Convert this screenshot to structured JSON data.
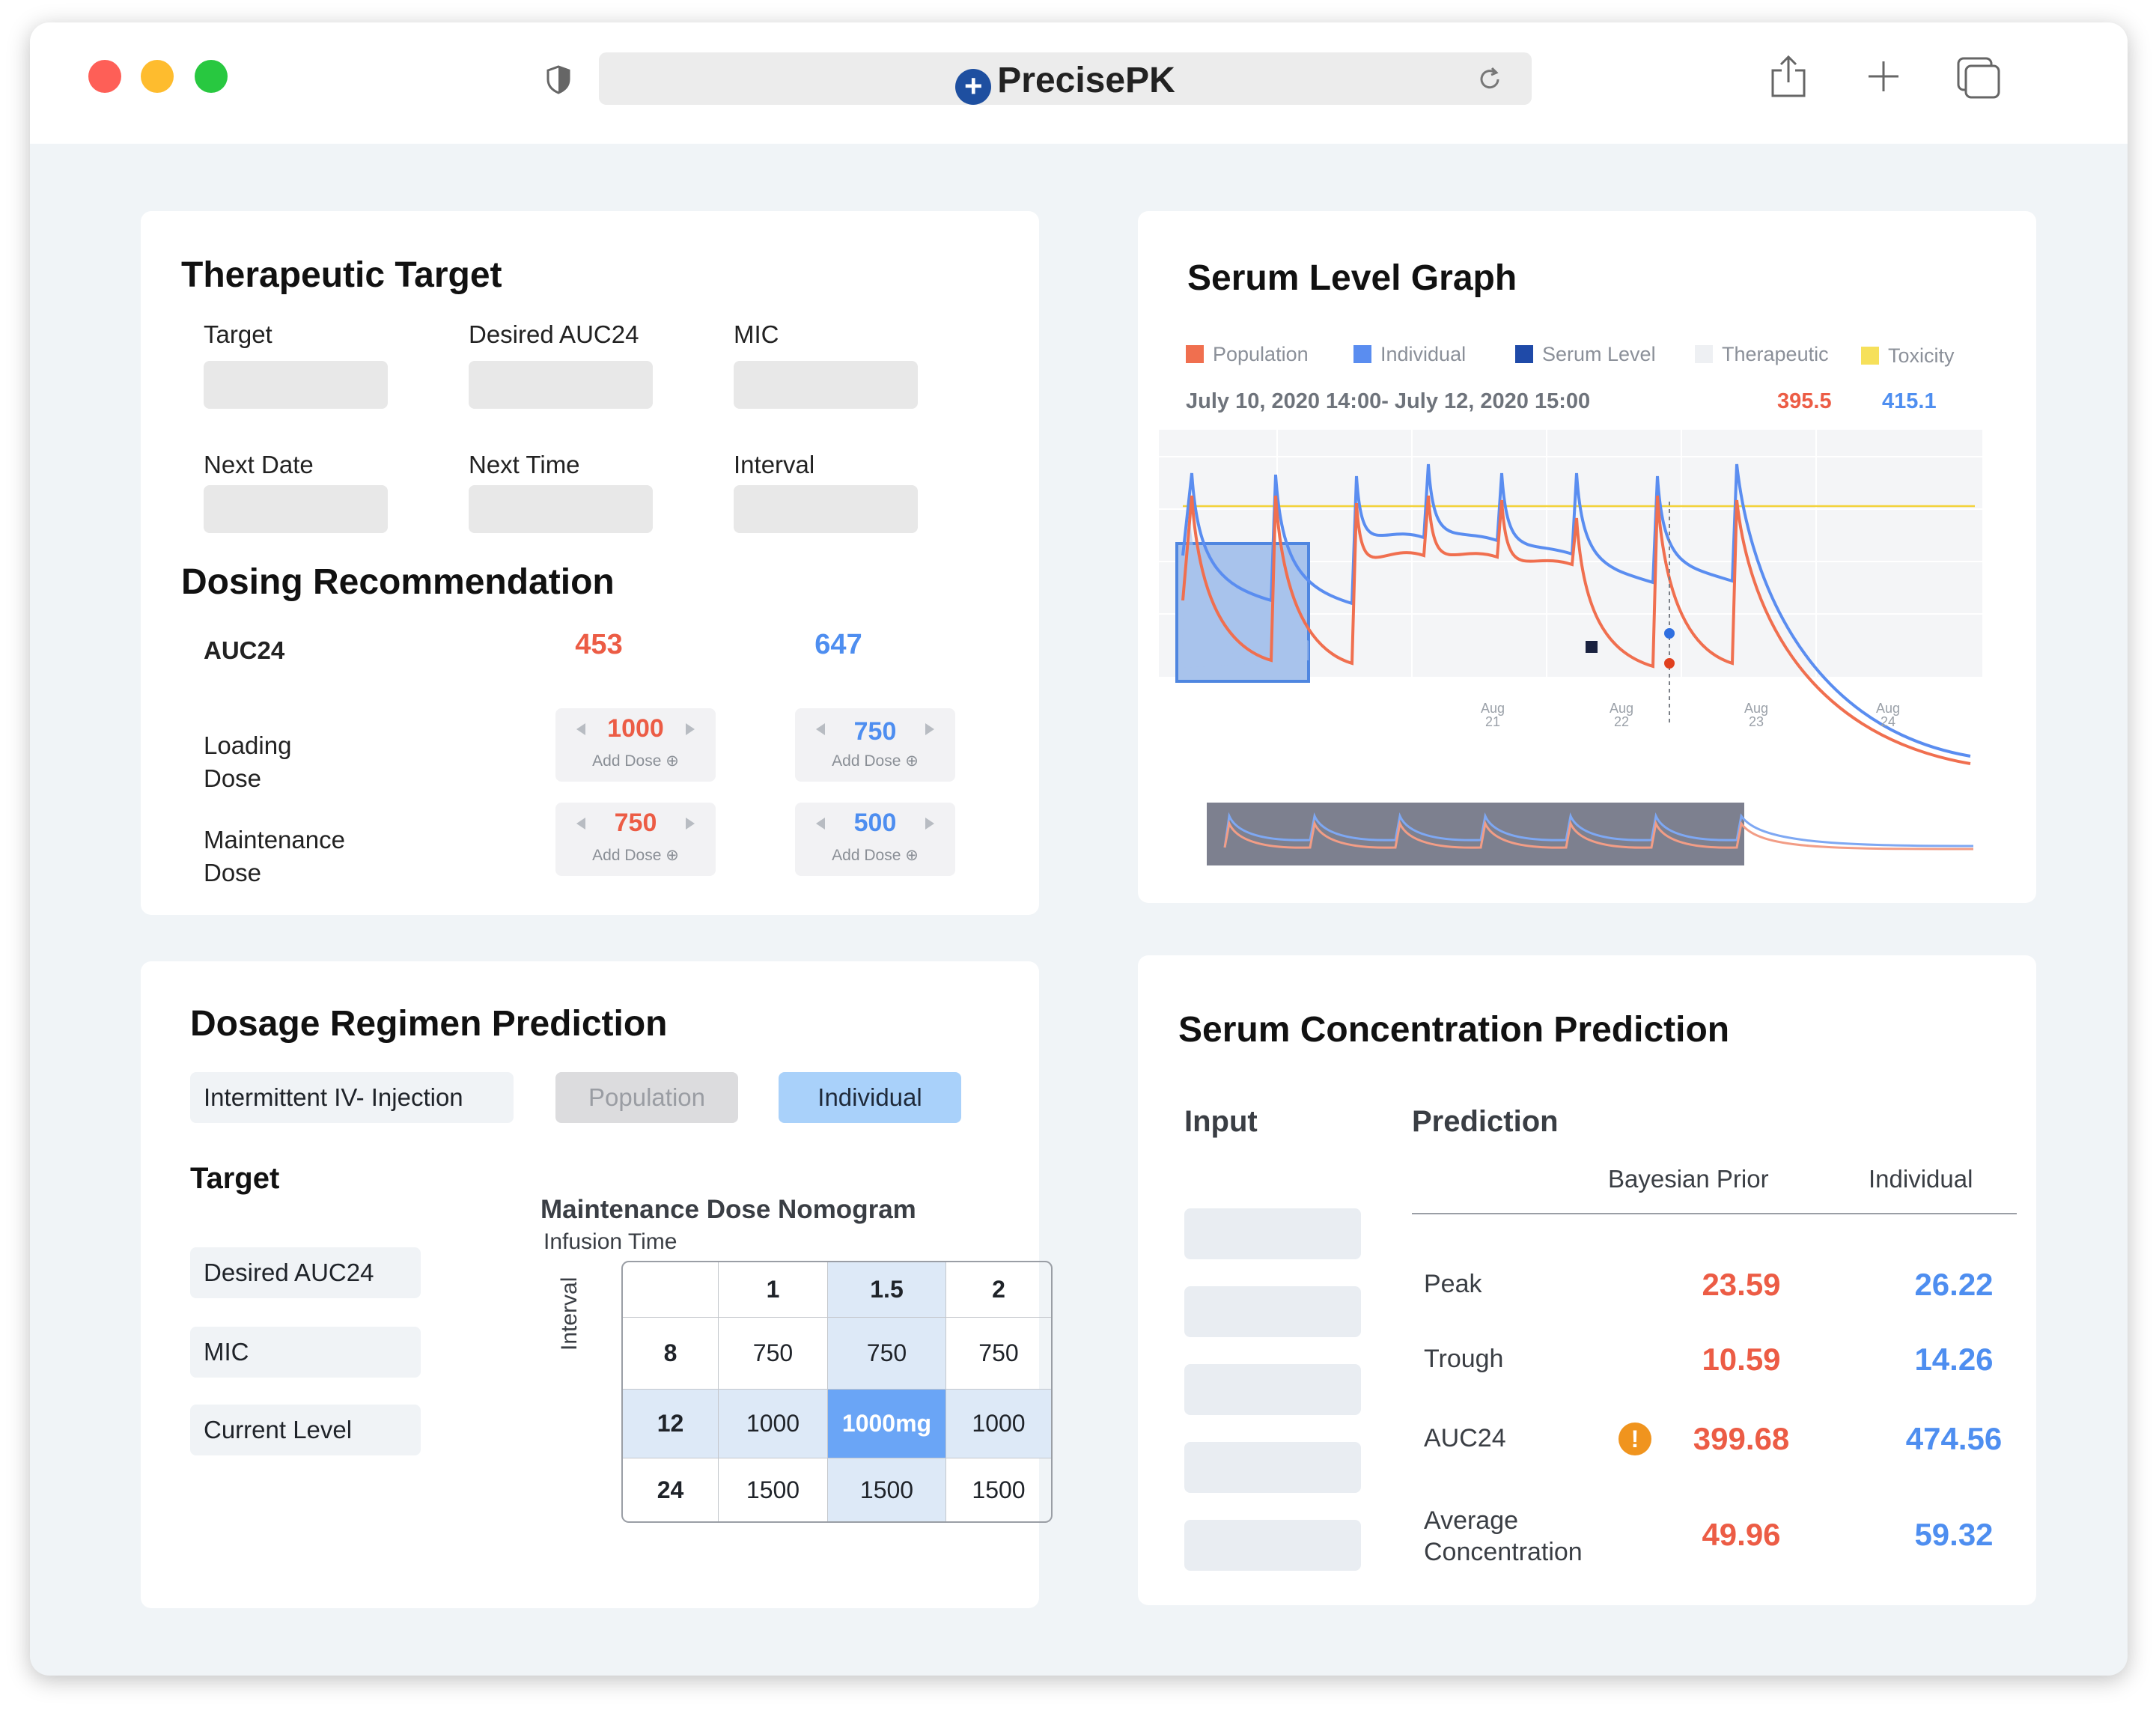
{
  "browser": {
    "brand": "PrecisePK"
  },
  "therapeutic_target": {
    "title": "Therapeutic Target",
    "labels": [
      "Target",
      "Desired AUC24",
      "MIC",
      "Next Date",
      "Next Time",
      "Interval"
    ]
  },
  "dosing": {
    "title": "Dosing Recommendation",
    "auc_label": "AUC24",
    "auc_pop": "453",
    "auc_ind": "647",
    "loading_label": "Loading Dose",
    "maint_label": "Maintenance Dose",
    "loading_pop": "1000",
    "loading_ind": "750",
    "maint_pop": "750",
    "maint_ind": "500",
    "add_dose": "Add Dose ⊕"
  },
  "serum_graph": {
    "title": "Serum Level Graph",
    "legend": [
      {
        "label": "Population",
        "color": "#f06f4f"
      },
      {
        "label": "Individual",
        "color": "#5a8df0"
      },
      {
        "label": "Serum Level",
        "color": "#1f4aa8"
      },
      {
        "label": "Therapeutic",
        "color": "#eef0f3"
      },
      {
        "label": "Toxicity",
        "color": "#f6e05a"
      }
    ],
    "date_range": "July 10, 2020 14:00- July 12, 2020 15:00",
    "cursor_pop": "395.5",
    "cursor_ind": "415.1",
    "x_ticks": [
      {
        "m": "Aug",
        "d": "21"
      },
      {
        "m": "Aug",
        "d": "22"
      },
      {
        "m": "Aug",
        "d": "23"
      },
      {
        "m": "Aug",
        "d": "24"
      }
    ]
  },
  "dosage_regimen": {
    "title": "Dosage Regimen Prediction",
    "route": "Intermittent IV- Injection",
    "tab_population": "Population",
    "tab_individual": "Individual",
    "target_title": "Target",
    "fields": [
      "Desired AUC24",
      "MIC",
      "Current Level"
    ],
    "nomogram": {
      "title": "Maintenance Dose Nomogram",
      "col_axis": "Infusion Time",
      "row_axis": "Interval",
      "columns": [
        "1",
        "1.5",
        "2"
      ],
      "rows": [
        {
          "interval": "8",
          "values": [
            "750",
            "750",
            "750"
          ]
        },
        {
          "interval": "12",
          "values": [
            "1000",
            "1000mg",
            "1000"
          ]
        },
        {
          "interval": "24",
          "values": [
            "1500",
            "1500",
            "1500"
          ]
        }
      ]
    }
  },
  "serum_prediction": {
    "title": "Serum Concentration Prediction",
    "input_label": "Input",
    "prediction_label": "Prediction",
    "col_prior": "Bayesian Prior",
    "col_individual": "Individual",
    "rows": [
      {
        "name": "Peak",
        "prior": "23.59",
        "individual": "26.22"
      },
      {
        "name": "Trough",
        "prior": "10.59",
        "individual": "14.26"
      },
      {
        "name": "AUC24",
        "prior": "399.68",
        "individual": "474.56"
      },
      {
        "name": "Average Concentration",
        "prior": "49.96",
        "individual": "59.32"
      }
    ]
  }
}
